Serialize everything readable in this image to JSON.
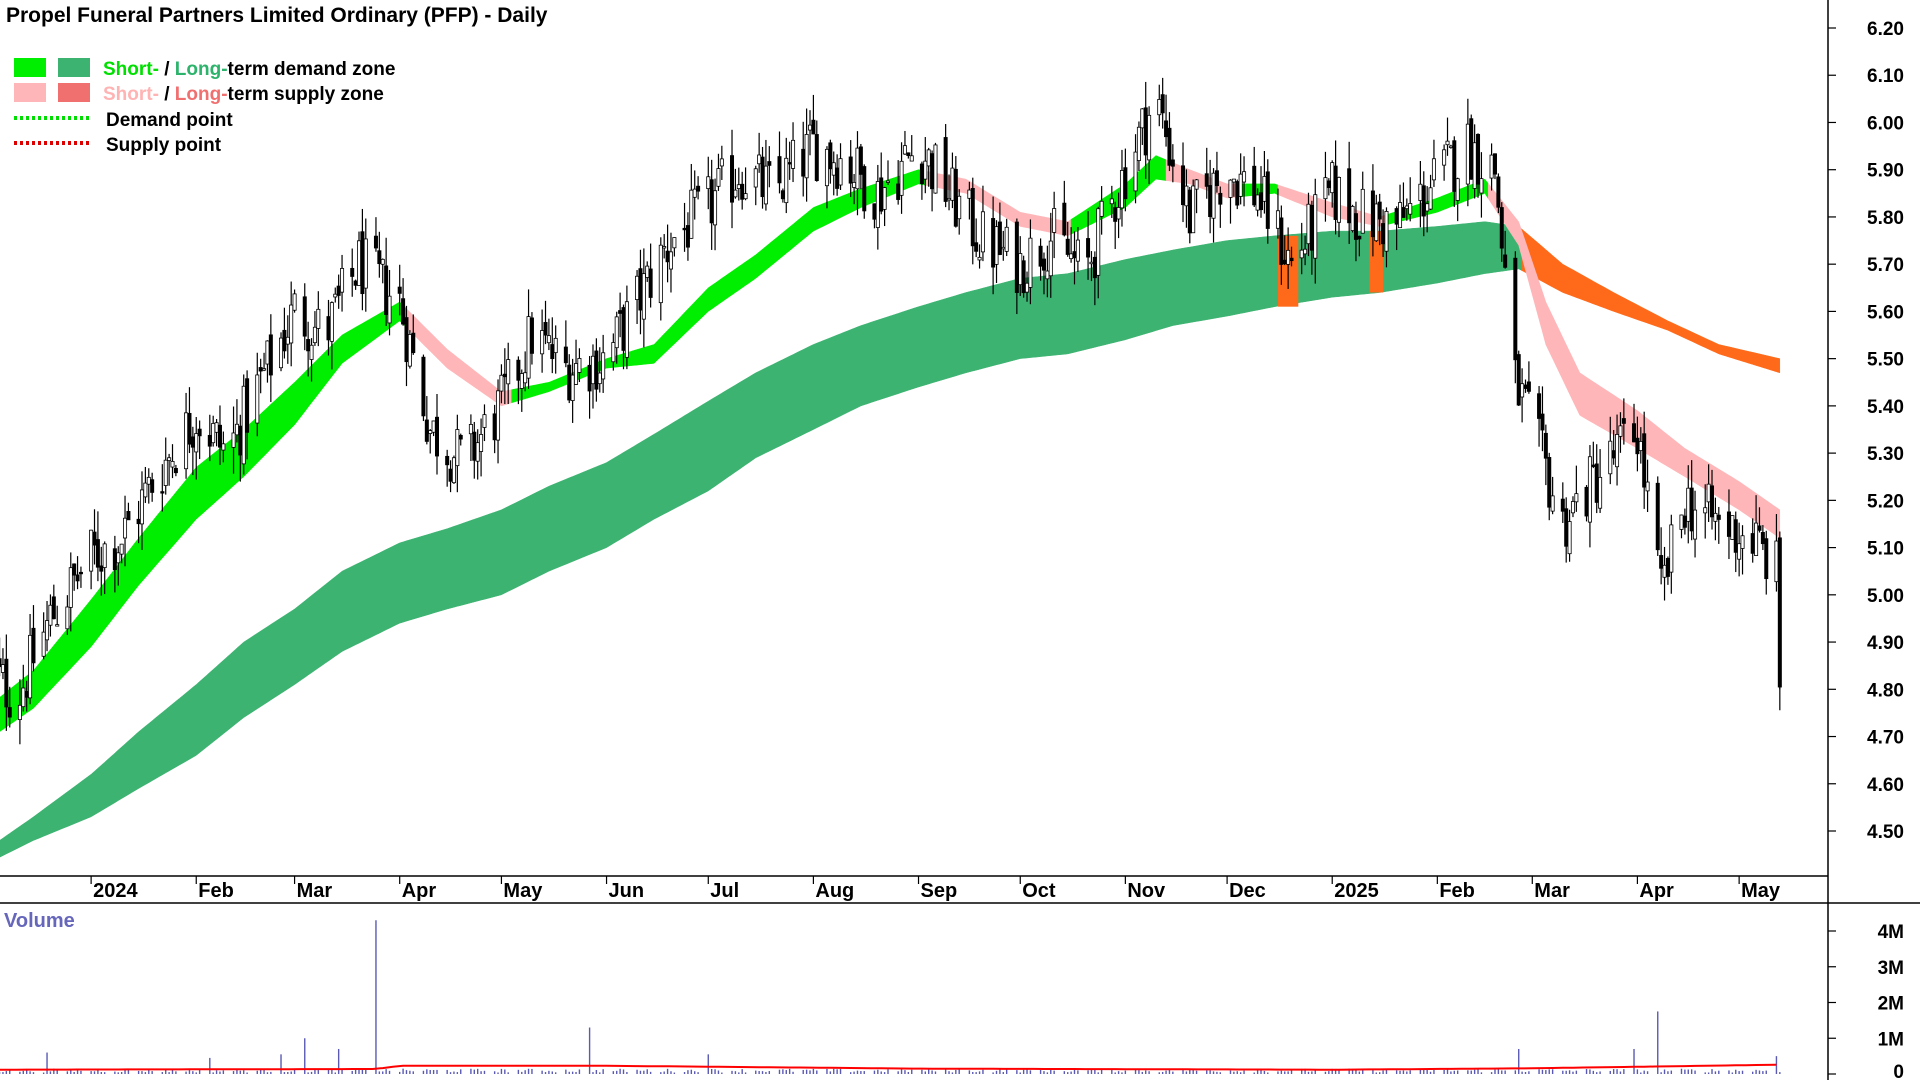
{
  "chart_data": [
    {
      "type": "candlestick",
      "title": "Propel Funeral Partners Limited Ordinary (PFP) - Daily",
      "ylim": [
        4.4,
        6.25
      ],
      "y_ticks": [
        4.5,
        4.6,
        4.7,
        4.8,
        4.9,
        5.0,
        5.1,
        5.2,
        5.3,
        5.4,
        5.5,
        5.6,
        5.7,
        5.8,
        5.9,
        6.0,
        6.1,
        6.2
      ],
      "y_tick_labels": [
        "4.50",
        "4.60",
        "4.70",
        "4.80",
        "4.90",
        "5.00",
        "5.10",
        "5.20",
        "5.30",
        "5.40",
        "5.50",
        "5.60",
        "5.70",
        "5.80",
        "5.90",
        "6.00",
        "6.10",
        "6.20"
      ],
      "x_range": [
        "2023-12-01",
        "2025-05-16"
      ],
      "x_ticks": [
        {
          "date": "2024-01-01",
          "label": "2024"
        },
        {
          "date": "2024-02-01",
          "label": "Feb"
        },
        {
          "date": "2024-03-01",
          "label": "Mar"
        },
        {
          "date": "2024-04-01",
          "label": "Apr"
        },
        {
          "date": "2024-05-01",
          "label": "May"
        },
        {
          "date": "2024-06-01",
          "label": "Jun"
        },
        {
          "date": "2024-07-01",
          "label": "Jul"
        },
        {
          "date": "2024-08-01",
          "label": "Aug"
        },
        {
          "date": "2024-09-01",
          "label": "Sep"
        },
        {
          "date": "2024-10-01",
          "label": "Oct"
        },
        {
          "date": "2024-11-01",
          "label": "Nov"
        },
        {
          "date": "2024-12-01",
          "label": "Dec"
        },
        {
          "date": "2025-01-01",
          "label": "2025"
        },
        {
          "date": "2025-02-01",
          "label": "Feb"
        },
        {
          "date": "2025-03-01",
          "label": "Mar"
        },
        {
          "date": "2025-04-01",
          "label": "Apr"
        },
        {
          "date": "2025-05-01",
          "label": "May"
        }
      ],
      "legend": [
        {
          "short": "Short-",
          "sep": " / ",
          "long": "Long-",
          "rest": "term demand zone",
          "short_color": "#00e000",
          "long_color": "#2db36b"
        },
        {
          "short": "Short-",
          "sep": " / ",
          "long": "Long-",
          "rest": "term supply zone",
          "short_color": "#ffb3b3",
          "long_color": "#f07070"
        },
        {
          "label": "Demand point",
          "color": "#00dd00"
        },
        {
          "label": "Supply point",
          "color": "#dd0000"
        }
      ],
      "zone_colors": {
        "short_demand": "#00ee00",
        "long_demand": "#3cb371",
        "short_supply": "#ffb6b9",
        "long_supply": "#ff6a1a"
      },
      "short_zone": [
        {
          "date": "2023-12-01",
          "upper": 4.76,
          "lower": 4.69
        },
        {
          "date": "2023-12-15",
          "upper": 4.84,
          "lower": 4.76
        },
        {
          "date": "2024-01-01",
          "upper": 4.99,
          "lower": 4.89
        },
        {
          "date": "2024-01-15",
          "upper": 5.12,
          "lower": 5.02
        },
        {
          "date": "2024-02-01",
          "upper": 5.27,
          "lower": 5.16
        },
        {
          "date": "2024-02-15",
          "upper": 5.35,
          "lower": 5.25
        },
        {
          "date": "2024-03-01",
          "upper": 5.45,
          "lower": 5.36
        },
        {
          "date": "2024-03-15",
          "upper": 5.55,
          "lower": 5.49
        },
        {
          "date": "2024-04-01",
          "upper": 5.62,
          "lower": 5.58
        },
        {
          "date": "2024-04-15",
          "upper": 5.52,
          "lower": 5.48
        },
        {
          "date": "2024-05-01",
          "upper": 5.43,
          "lower": 5.4
        },
        {
          "date": "2024-05-15",
          "upper": 5.45,
          "lower": 5.43
        },
        {
          "date": "2024-06-01",
          "upper": 5.5,
          "lower": 5.48
        },
        {
          "date": "2024-06-15",
          "upper": 5.53,
          "lower": 5.49
        },
        {
          "date": "2024-07-01",
          "upper": 5.65,
          "lower": 5.6
        },
        {
          "date": "2024-07-15",
          "upper": 5.72,
          "lower": 5.67
        },
        {
          "date": "2024-08-01",
          "upper": 5.82,
          "lower": 5.77
        },
        {
          "date": "2024-08-15",
          "upper": 5.86,
          "lower": 5.82
        },
        {
          "date": "2024-09-01",
          "upper": 5.9,
          "lower": 5.87
        },
        {
          "date": "2024-09-15",
          "upper": 5.88,
          "lower": 5.85
        },
        {
          "date": "2024-10-01",
          "upper": 5.81,
          "lower": 5.78
        },
        {
          "date": "2024-10-15",
          "upper": 5.79,
          "lower": 5.76
        },
        {
          "date": "2024-11-01",
          "upper": 5.87,
          "lower": 5.82
        },
        {
          "date": "2024-11-10",
          "upper": 5.93,
          "lower": 5.88
        },
        {
          "date": "2024-11-20",
          "upper": 5.9,
          "lower": 5.87
        },
        {
          "date": "2024-12-01",
          "upper": 5.87,
          "lower": 5.84
        },
        {
          "date": "2024-12-15",
          "upper": 5.87,
          "lower": 5.85
        },
        {
          "date": "2025-01-01",
          "upper": 5.83,
          "lower": 5.8
        },
        {
          "date": "2025-01-15",
          "upper": 5.8,
          "lower": 5.78
        },
        {
          "date": "2025-02-01",
          "upper": 5.84,
          "lower": 5.81
        },
        {
          "date": "2025-02-15",
          "upper": 5.88,
          "lower": 5.85
        },
        {
          "date": "2025-02-25",
          "upper": 5.79,
          "lower": 5.74
        },
        {
          "date": "2025-03-05",
          "upper": 5.62,
          "lower": 5.53
        },
        {
          "date": "2025-03-15",
          "upper": 5.47,
          "lower": 5.38
        },
        {
          "date": "2025-04-01",
          "upper": 5.39,
          "lower": 5.31
        },
        {
          "date": "2025-04-15",
          "upper": 5.31,
          "lower": 5.25
        },
        {
          "date": "2025-05-01",
          "upper": 5.24,
          "lower": 5.18
        },
        {
          "date": "2025-05-13",
          "upper": 5.18,
          "lower": 5.12
        }
      ],
      "long_zone": [
        {
          "date": "2023-12-01",
          "upper": 4.46,
          "lower": 4.43
        },
        {
          "date": "2023-12-15",
          "upper": 4.53,
          "lower": 4.48
        },
        {
          "date": "2024-01-01",
          "upper": 4.62,
          "lower": 4.53
        },
        {
          "date": "2024-01-15",
          "upper": 4.71,
          "lower": 4.59
        },
        {
          "date": "2024-02-01",
          "upper": 4.81,
          "lower": 4.66
        },
        {
          "date": "2024-02-15",
          "upper": 4.9,
          "lower": 4.74
        },
        {
          "date": "2024-03-01",
          "upper": 4.97,
          "lower": 4.81
        },
        {
          "date": "2024-03-15",
          "upper": 5.05,
          "lower": 4.88
        },
        {
          "date": "2024-04-01",
          "upper": 5.11,
          "lower": 4.94
        },
        {
          "date": "2024-04-15",
          "upper": 5.14,
          "lower": 4.97
        },
        {
          "date": "2024-05-01",
          "upper": 5.18,
          "lower": 5.0
        },
        {
          "date": "2024-05-15",
          "upper": 5.23,
          "lower": 5.05
        },
        {
          "date": "2024-06-01",
          "upper": 5.28,
          "lower": 5.1
        },
        {
          "date": "2024-06-15",
          "upper": 5.34,
          "lower": 5.16
        },
        {
          "date": "2024-07-01",
          "upper": 5.41,
          "lower": 5.22
        },
        {
          "date": "2024-07-15",
          "upper": 5.47,
          "lower": 5.29
        },
        {
          "date": "2024-08-01",
          "upper": 5.53,
          "lower": 5.35
        },
        {
          "date": "2024-08-15",
          "upper": 5.57,
          "lower": 5.4
        },
        {
          "date": "2024-09-01",
          "upper": 5.61,
          "lower": 5.44
        },
        {
          "date": "2024-09-15",
          "upper": 5.64,
          "lower": 5.47
        },
        {
          "date": "2024-10-01",
          "upper": 5.67,
          "lower": 5.5
        },
        {
          "date": "2024-10-15",
          "upper": 5.68,
          "lower": 5.51
        },
        {
          "date": "2024-11-01",
          "upper": 5.71,
          "lower": 5.54
        },
        {
          "date": "2024-11-15",
          "upper": 5.73,
          "lower": 5.57
        },
        {
          "date": "2024-12-01",
          "upper": 5.75,
          "lower": 5.59
        },
        {
          "date": "2024-12-15",
          "upper": 5.76,
          "lower": 5.61
        },
        {
          "date": "2025-01-01",
          "upper": 5.77,
          "lower": 5.63
        },
        {
          "date": "2025-01-15",
          "upper": 5.77,
          "lower": 5.64
        },
        {
          "date": "2025-02-01",
          "upper": 5.78,
          "lower": 5.66
        },
        {
          "date": "2025-02-15",
          "upper": 5.79,
          "lower": 5.68
        },
        {
          "date": "2025-02-25",
          "upper": 5.78,
          "lower": 5.69
        },
        {
          "date": "2025-03-10",
          "upper": 5.7,
          "lower": 5.64
        },
        {
          "date": "2025-03-25",
          "upper": 5.64,
          "lower": 5.6
        },
        {
          "date": "2025-04-10",
          "upper": 5.58,
          "lower": 5.56
        },
        {
          "date": "2025-04-25",
          "upper": 5.53,
          "lower": 5.51
        },
        {
          "date": "2025-05-13",
          "upper": 5.5,
          "lower": 5.47
        }
      ],
      "long_supply_blocks": [
        {
          "start": "2024-12-16",
          "end": "2024-12-22",
          "upper": 5.76,
          "lower": 5.61
        },
        {
          "start": "2025-01-12",
          "end": "2025-01-16",
          "upper": 5.77,
          "lower": 5.64
        }
      ],
      "price": [
        {
          "date": "2023-12-01",
          "close": 4.85
        },
        {
          "date": "2023-12-10",
          "close": 4.78
        },
        {
          "date": "2023-12-20",
          "close": 4.95
        },
        {
          "date": "2024-01-01",
          "close": 5.08
        },
        {
          "date": "2024-01-10",
          "close": 5.12
        },
        {
          "date": "2024-01-20",
          "close": 5.25
        },
        {
          "date": "2024-02-01",
          "close": 5.38
        },
        {
          "date": "2024-02-10",
          "close": 5.3
        },
        {
          "date": "2024-02-20",
          "close": 5.45
        },
        {
          "date": "2024-03-01",
          "close": 5.6
        },
        {
          "date": "2024-03-10",
          "close": 5.55
        },
        {
          "date": "2024-03-20",
          "close": 5.7
        },
        {
          "date": "2024-04-01",
          "close": 5.62
        },
        {
          "date": "2024-04-10",
          "close": 5.35
        },
        {
          "date": "2024-04-20",
          "close": 5.28
        },
        {
          "date": "2024-05-01",
          "close": 5.4
        },
        {
          "date": "2024-05-10",
          "close": 5.55
        },
        {
          "date": "2024-05-20",
          "close": 5.48
        },
        {
          "date": "2024-06-01",
          "close": 5.5
        },
        {
          "date": "2024-06-10",
          "close": 5.62
        },
        {
          "date": "2024-06-20",
          "close": 5.75
        },
        {
          "date": "2024-07-01",
          "close": 5.82
        },
        {
          "date": "2024-07-10",
          "close": 5.9
        },
        {
          "date": "2024-07-20",
          "close": 5.85
        },
        {
          "date": "2024-08-01",
          "close": 5.95
        },
        {
          "date": "2024-08-10",
          "close": 5.92
        },
        {
          "date": "2024-08-20",
          "close": 5.85
        },
        {
          "date": "2024-09-01",
          "close": 5.95
        },
        {
          "date": "2024-09-10",
          "close": 5.85
        },
        {
          "date": "2024-09-20",
          "close": 5.75
        },
        {
          "date": "2024-10-01",
          "close": 5.7
        },
        {
          "date": "2024-10-10",
          "close": 5.76
        },
        {
          "date": "2024-10-20",
          "close": 5.68
        },
        {
          "date": "2024-11-01",
          "close": 5.9
        },
        {
          "date": "2024-11-10",
          "close": 6.05
        },
        {
          "date": "2024-11-20",
          "close": 5.8
        },
        {
          "date": "2024-12-01",
          "close": 5.9
        },
        {
          "date": "2024-12-10",
          "close": 5.85
        },
        {
          "date": "2024-12-20",
          "close": 5.7
        },
        {
          "date": "2025-01-01",
          "close": 5.85
        },
        {
          "date": "2025-01-10",
          "close": 5.8
        },
        {
          "date": "2025-01-20",
          "close": 5.78
        },
        {
          "date": "2025-02-01",
          "close": 5.88
        },
        {
          "date": "2025-02-10",
          "close": 5.95
        },
        {
          "date": "2025-02-18",
          "close": 5.9
        },
        {
          "date": "2025-02-24",
          "close": 5.45
        },
        {
          "date": "2025-03-01",
          "close": 5.35
        },
        {
          "date": "2025-03-10",
          "close": 5.15
        },
        {
          "date": "2025-03-20",
          "close": 5.25
        },
        {
          "date": "2025-04-01",
          "close": 5.35
        },
        {
          "date": "2025-04-08",
          "close": 5.0
        },
        {
          "date": "2025-04-15",
          "close": 5.2
        },
        {
          "date": "2025-04-25",
          "close": 5.15
        },
        {
          "date": "2025-05-05",
          "close": 5.12
        },
        {
          "date": "2025-05-12",
          "close": 5.05
        },
        {
          "date": "2025-05-13",
          "close": 4.82
        }
      ]
    },
    {
      "type": "bar",
      "title": "Volume",
      "ylim": [
        0,
        4500000
      ],
      "y_ticks": [
        0,
        1000000,
        2000000,
        3000000,
        4000000
      ],
      "y_tick_labels": [
        "0",
        "1M",
        "2M",
        "3M",
        "4M"
      ],
      "bar_color": "#5a5ab4",
      "average_color": "#ff0000",
      "spikes": [
        {
          "date": "2023-12-20",
          "value": 600000
        },
        {
          "date": "2024-02-05",
          "value": 450000
        },
        {
          "date": "2024-02-25",
          "value": 550000
        },
        {
          "date": "2024-03-03",
          "value": 1000000
        },
        {
          "date": "2024-03-15",
          "value": 700000
        },
        {
          "date": "2024-03-26",
          "value": 4300000
        },
        {
          "date": "2024-05-26",
          "value": 1300000
        },
        {
          "date": "2024-06-30",
          "value": 550000
        },
        {
          "date": "2025-02-26",
          "value": 700000
        },
        {
          "date": "2025-03-30",
          "value": 700000
        },
        {
          "date": "2025-04-07",
          "value": 1750000
        },
        {
          "date": "2025-05-13",
          "value": 500000
        }
      ],
      "average": [
        {
          "date": "2023-12-01",
          "value": 120000
        },
        {
          "date": "2024-03-25",
          "value": 140000
        },
        {
          "date": "2024-04-01",
          "value": 230000
        },
        {
          "date": "2024-06-01",
          "value": 230000
        },
        {
          "date": "2024-09-01",
          "value": 150000
        },
        {
          "date": "2025-01-01",
          "value": 120000
        },
        {
          "date": "2025-03-01",
          "value": 160000
        },
        {
          "date": "2025-05-13",
          "value": 260000
        }
      ]
    }
  ]
}
